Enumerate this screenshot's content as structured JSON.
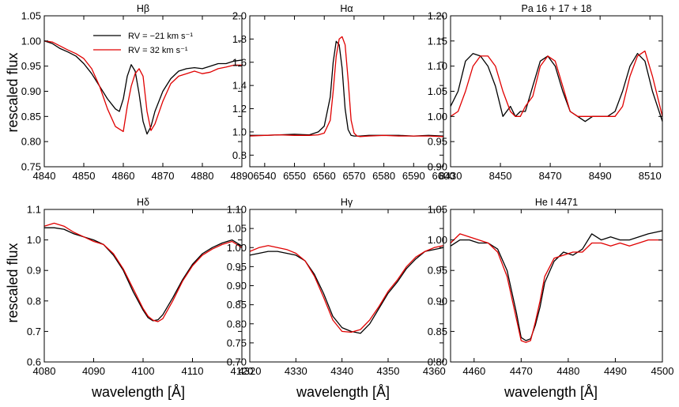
{
  "figure": {
    "ylabel": "rescaled flux",
    "xlabel": "wavelength [Å]"
  },
  "legend": [
    {
      "label": "RV = −21 km s⁻¹",
      "color": "#000000"
    },
    {
      "label": "RV = 32 km s⁻¹",
      "color": "#e00000"
    }
  ],
  "chart_data": [
    {
      "type": "line",
      "title": "Hβ",
      "xlim": [
        4840,
        4890
      ],
      "ylim": [
        0.75,
        1.05
      ],
      "xticks": [
        4840,
        4850,
        4860,
        4870,
        4880,
        4890
      ],
      "xtick_labels": [
        "4840",
        "4850",
        "4860",
        "4870",
        "4880",
        "4890"
      ],
      "yticks": [
        0.75,
        0.8,
        0.85,
        0.9,
        0.95,
        1.0,
        1.05
      ],
      "ytick_labels": [
        "0.75",
        "0.80",
        "0.85",
        "0.90",
        "0.95",
        "1.00",
        "1.05"
      ],
      "ylabel": "rescaled flux",
      "xlabel": "",
      "legend_position": "top-center",
      "series": [
        {
          "name": "RV = −21 km s⁻¹",
          "color": "#000000",
          "x": [
            4840,
            4842,
            4844,
            4846,
            4848,
            4850,
            4852,
            4854,
            4856,
            4858,
            4859,
            4860,
            4861,
            4862,
            4863,
            4864,
            4865,
            4866,
            4867,
            4868,
            4870,
            4872,
            4874,
            4876,
            4878,
            4880,
            4882,
            4884,
            4886,
            4888,
            4890
          ],
          "y": [
            1.0,
            0.995,
            0.985,
            0.978,
            0.97,
            0.955,
            0.935,
            0.91,
            0.885,
            0.865,
            0.86,
            0.885,
            0.93,
            0.953,
            0.94,
            0.895,
            0.84,
            0.815,
            0.83,
            0.86,
            0.9,
            0.925,
            0.94,
            0.945,
            0.947,
            0.945,
            0.95,
            0.955,
            0.955,
            0.96,
            0.962
          ]
        },
        {
          "name": "RV = 32 km s⁻¹",
          "color": "#e00000",
          "x": [
            4840,
            4842,
            4844,
            4846,
            4848,
            4850,
            4852,
            4854,
            4856,
            4858,
            4859,
            4860,
            4861,
            4862,
            4863,
            4864,
            4865,
            4866,
            4867,
            4868,
            4870,
            4872,
            4874,
            4876,
            4878,
            4880,
            4882,
            4884,
            4886,
            4888,
            4890
          ],
          "y": [
            1.0,
            0.998,
            0.99,
            0.982,
            0.975,
            0.965,
            0.945,
            0.91,
            0.865,
            0.83,
            0.825,
            0.82,
            0.87,
            0.91,
            0.935,
            0.945,
            0.93,
            0.86,
            0.822,
            0.835,
            0.88,
            0.915,
            0.93,
            0.935,
            0.94,
            0.935,
            0.938,
            0.945,
            0.948,
            0.952,
            0.952
          ]
        }
      ]
    },
    {
      "type": "line",
      "title": "Hα",
      "xlim": [
        6535,
        6600
      ],
      "ylim": [
        0.7,
        2.0
      ],
      "xticks": [
        6540,
        6550,
        6560,
        6570,
        6580,
        6590,
        6600
      ],
      "xtick_labels": [
        "6540",
        "6550",
        "6560",
        "6570",
        "6580",
        "6590",
        "6600"
      ],
      "yticks": [
        0.8,
        1.0,
        1.2,
        1.4,
        1.6,
        1.8,
        2.0
      ],
      "ytick_labels": [
        "0.8",
        "1.0",
        "1.2",
        "1.4",
        "1.6",
        "1.8",
        "2.0"
      ],
      "series": [
        {
          "name": "RV = −21 km s⁻¹",
          "color": "#000000",
          "x": [
            6535,
            6540,
            6545,
            6550,
            6555,
            6558,
            6560,
            6562,
            6563,
            6564,
            6565,
            6566,
            6567,
            6568,
            6569,
            6570,
            6571,
            6572,
            6575,
            6580,
            6585,
            6590,
            6595,
            6600
          ],
          "y": [
            0.97,
            0.97,
            0.975,
            0.98,
            0.975,
            1.0,
            1.05,
            1.3,
            1.6,
            1.78,
            1.75,
            1.55,
            1.2,
            1.02,
            0.97,
            0.965,
            0.965,
            0.965,
            0.97,
            0.97,
            0.97,
            0.965,
            0.97,
            0.965
          ]
        },
        {
          "name": "RV = 32 km s⁻¹",
          "color": "#e00000",
          "x": [
            6535,
            6540,
            6545,
            6550,
            6555,
            6558,
            6560,
            6562,
            6563,
            6564,
            6565,
            6566,
            6567,
            6568,
            6569,
            6570,
            6571,
            6572,
            6575,
            6580,
            6585,
            6590,
            6595,
            6600
          ],
          "y": [
            0.965,
            0.97,
            0.975,
            0.97,
            0.97,
            0.975,
            0.99,
            1.1,
            1.35,
            1.65,
            1.8,
            1.82,
            1.75,
            1.45,
            1.1,
            0.99,
            0.965,
            0.96,
            0.965,
            0.97,
            0.965,
            0.965,
            0.965,
            0.96
          ]
        }
      ]
    },
    {
      "type": "line",
      "title": "Pa 16 + 17 + 18",
      "xlim": [
        8430,
        8515
      ],
      "ylim": [
        0.9,
        1.2
      ],
      "xticks": [
        8430,
        8450,
        8470,
        8490,
        8510
      ],
      "xtick_labels": [
        "8430",
        "8450",
        "8470",
        "8490",
        "8510"
      ],
      "yticks": [
        0.9,
        0.95,
        1.0,
        1.05,
        1.1,
        1.15,
        1.2
      ],
      "ytick_labels": [
        "0.90",
        "0.95",
        "1.00",
        "1.05",
        "1.10",
        "1.15",
        "1.20"
      ],
      "series": [
        {
          "name": "RV = −21 km s⁻¹",
          "color": "#000000",
          "x": [
            8430,
            8433,
            8436,
            8439,
            8442,
            8445,
            8448,
            8451,
            8454,
            8456,
            8458,
            8460,
            8463,
            8466,
            8469,
            8472,
            8475,
            8478,
            8481,
            8484,
            8487,
            8490,
            8493,
            8496,
            8499,
            8502,
            8505,
            8508,
            8511,
            8515
          ],
          "y": [
            1.02,
            1.05,
            1.11,
            1.125,
            1.12,
            1.1,
            1.06,
            1.0,
            1.02,
            1.0,
            1.01,
            1.01,
            1.06,
            1.11,
            1.12,
            1.1,
            1.05,
            1.01,
            1.0,
            0.99,
            1.0,
            1.0,
            1.0,
            1.01,
            1.05,
            1.1,
            1.125,
            1.11,
            1.05,
            0.99
          ]
        },
        {
          "name": "RV = 32 km s⁻¹",
          "color": "#e00000",
          "x": [
            8430,
            8433,
            8436,
            8439,
            8442,
            8445,
            8448,
            8451,
            8454,
            8456,
            8458,
            8460,
            8463,
            8466,
            8469,
            8472,
            8475,
            8478,
            8481,
            8484,
            8487,
            8490,
            8493,
            8496,
            8499,
            8502,
            8505,
            8508,
            8511,
            8515
          ],
          "y": [
            1.0,
            1.01,
            1.05,
            1.1,
            1.12,
            1.12,
            1.1,
            1.05,
            1.01,
            1.0,
            1.0,
            1.02,
            1.04,
            1.1,
            1.12,
            1.11,
            1.06,
            1.01,
            1.0,
            1.0,
            1.0,
            1.0,
            1.0,
            1.0,
            1.02,
            1.08,
            1.12,
            1.13,
            1.08,
            1.0
          ]
        }
      ]
    },
    {
      "type": "line",
      "title": "Hδ",
      "xlim": [
        4080,
        4120
      ],
      "ylim": [
        0.6,
        1.1
      ],
      "xticks": [
        4080,
        4090,
        4100,
        4110,
        4120
      ],
      "xtick_labels": [
        "4080",
        "4090",
        "4100",
        "4110",
        "4120"
      ],
      "yticks": [
        0.6,
        0.7,
        0.8,
        0.9,
        1.0,
        1.1
      ],
      "ytick_labels": [
        "0.6",
        "0.7",
        "0.8",
        "0.9",
        "1.0",
        "1.1"
      ],
      "ylabel": "rescaled flux",
      "xlabel": "wavelength [Å]",
      "series": [
        {
          "name": "RV = −21 km s⁻¹",
          "color": "#000000",
          "x": [
            4080,
            4082,
            4084,
            4086,
            4088,
            4090,
            4092,
            4094,
            4096,
            4098,
            4100,
            4101,
            4102,
            4103,
            4104,
            4106,
            4108,
            4110,
            4112,
            4114,
            4116,
            4118,
            4120
          ],
          "y": [
            1.04,
            1.04,
            1.035,
            1.02,
            1.01,
            1.0,
            0.985,
            0.95,
            0.9,
            0.83,
            0.77,
            0.745,
            0.735,
            0.738,
            0.755,
            0.81,
            0.87,
            0.92,
            0.955,
            0.975,
            0.99,
            1.0,
            0.98
          ]
        },
        {
          "name": "RV = 32 km s⁻¹",
          "color": "#e00000",
          "x": [
            4080,
            4082,
            4084,
            4086,
            4088,
            4090,
            4092,
            4094,
            4096,
            4098,
            4100,
            4101,
            4102,
            4103,
            4104,
            4106,
            4108,
            4110,
            4112,
            4114,
            4116,
            4118,
            4120
          ],
          "y": [
            1.045,
            1.055,
            1.045,
            1.025,
            1.01,
            0.995,
            0.985,
            0.955,
            0.905,
            0.84,
            0.775,
            0.75,
            0.737,
            0.732,
            0.742,
            0.8,
            0.865,
            0.915,
            0.95,
            0.97,
            0.985,
            0.995,
            0.975
          ]
        }
      ]
    },
    {
      "type": "line",
      "title": "Hγ",
      "xlim": [
        4320,
        4362
      ],
      "ylim": [
        0.7,
        1.1
      ],
      "xticks": [
        4320,
        4330,
        4340,
        4350,
        4360
      ],
      "xtick_labels": [
        "4320",
        "4330",
        "4340",
        "4350",
        "4360"
      ],
      "yticks": [
        0.7,
        0.75,
        0.8,
        0.85,
        0.9,
        0.95,
        1.0,
        1.05,
        1.1
      ],
      "ytick_labels": [
        "0.70",
        "0.75",
        "0.80",
        "0.85",
        "0.90",
        "0.95",
        "1.00",
        "1.05",
        "1.10"
      ],
      "xlabel": "wavelength [Å]",
      "series": [
        {
          "name": "RV = −21 km s⁻¹",
          "color": "#000000",
          "x": [
            4320,
            4322,
            4324,
            4326,
            4328,
            4330,
            4332,
            4334,
            4336,
            4338,
            4340,
            4342,
            4344,
            4346,
            4348,
            4350,
            4352,
            4354,
            4356,
            4358,
            4360,
            4362
          ],
          "y": [
            0.98,
            0.985,
            0.99,
            0.99,
            0.985,
            0.98,
            0.965,
            0.93,
            0.88,
            0.82,
            0.79,
            0.78,
            0.775,
            0.8,
            0.84,
            0.88,
            0.91,
            0.945,
            0.97,
            0.99,
            0.995,
            1.0
          ]
        },
        {
          "name": "RV = 32 km s⁻¹",
          "color": "#e00000",
          "x": [
            4320,
            4322,
            4324,
            4326,
            4328,
            4330,
            4332,
            4334,
            4336,
            4338,
            4340,
            4342,
            4344,
            4346,
            4348,
            4350,
            4352,
            4354,
            4356,
            4358,
            4360,
            4362
          ],
          "y": [
            0.99,
            1.0,
            1.005,
            1.0,
            0.995,
            0.985,
            0.965,
            0.925,
            0.87,
            0.81,
            0.78,
            0.778,
            0.785,
            0.81,
            0.845,
            0.885,
            0.915,
            0.95,
            0.975,
            0.99,
            1.0,
            1.005
          ]
        }
      ]
    },
    {
      "type": "line",
      "title": "He I 4471",
      "xlim": [
        4455,
        4500
      ],
      "ylim": [
        0.8,
        1.05
      ],
      "xticks": [
        4460,
        4470,
        4480,
        4490,
        4500
      ],
      "xtick_labels": [
        "4460",
        "4470",
        "4480",
        "4490",
        "4500"
      ],
      "yticks": [
        0.8,
        0.85,
        0.9,
        0.95,
        1.0,
        1.05
      ],
      "ytick_labels": [
        "0.80",
        "0.85",
        "0.90",
        "0.95",
        "1.00",
        "1.05"
      ],
      "series": [
        {
          "name": "RV = −21 km s⁻¹",
          "color": "#000000",
          "x": [
            4455,
            4457,
            4459,
            4461,
            4463,
            4465,
            4467,
            4469,
            4470,
            4471,
            4472,
            4473,
            4474,
            4475,
            4477,
            4479,
            4481,
            4483,
            4485,
            4487,
            4489,
            4491,
            4493,
            4495,
            4497,
            4500
          ],
          "y": [
            0.99,
            1.0,
            1.0,
            0.995,
            0.995,
            0.985,
            0.95,
            0.88,
            0.84,
            0.835,
            0.838,
            0.86,
            0.89,
            0.93,
            0.965,
            0.98,
            0.975,
            0.985,
            1.01,
            1.0,
            1.005,
            1.0,
            1.0,
            1.005,
            1.01,
            1.015
          ]
        },
        {
          "name": "RV = 32 km s⁻¹",
          "color": "#e00000",
          "x": [
            4455,
            4457,
            4459,
            4461,
            4463,
            4465,
            4467,
            4469,
            4470,
            4471,
            4472,
            4473,
            4474,
            4475,
            4477,
            4479,
            4481,
            4483,
            4485,
            4487,
            4489,
            4491,
            4493,
            4495,
            4497,
            4500
          ],
          "y": [
            0.995,
            1.01,
            1.005,
            1.0,
            0.995,
            0.98,
            0.94,
            0.87,
            0.835,
            0.832,
            0.835,
            0.865,
            0.9,
            0.94,
            0.97,
            0.975,
            0.98,
            0.98,
            0.995,
            0.995,
            0.99,
            0.995,
            0.99,
            0.995,
            1.0,
            1.0
          ]
        }
      ]
    }
  ]
}
